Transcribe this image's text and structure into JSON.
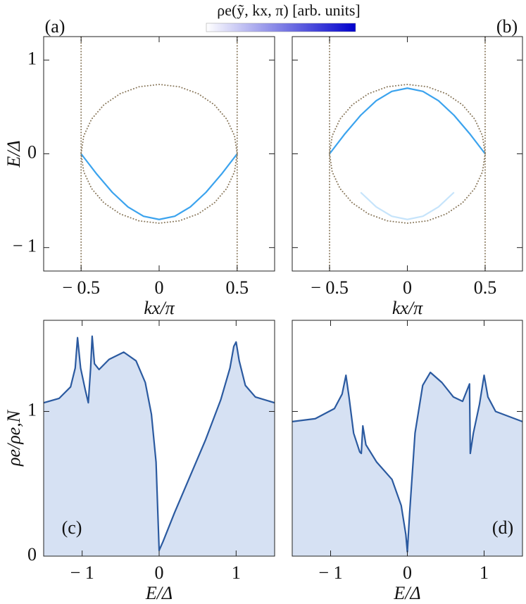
{
  "chart_data": [
    {
      "type": "line",
      "panel_label": "(a)",
      "ylabel": "E/Δ",
      "xlabel": "kx/π",
      "colorbar": {
        "label": "ρe(ỹ, kx, π) [arb. units]",
        "colors": [
          "#ffffff",
          "#0000cc"
        ]
      },
      "xlim": [
        -0.74,
        0.74
      ],
      "ylim": [
        -1.25,
        1.25
      ],
      "xticks": [
        {
          "value": -0.5,
          "label": "− 0.5"
        },
        0,
        0.5
      ],
      "yticks": [
        {
          "value": -1,
          "label": "− 1"
        },
        0,
        1
      ],
      "show_ytick_labels": true,
      "series": [
        {
          "color": "#3ba3ee",
          "style": "solid",
          "x": [
            -0.5,
            -0.4,
            -0.3,
            -0.2,
            -0.1,
            0,
            0.1,
            0.2,
            0.3,
            0.4,
            0.5
          ],
          "values": [
            0,
            -0.216,
            -0.411,
            -0.566,
            -0.666,
            -0.7,
            -0.666,
            -0.566,
            -0.411,
            -0.216,
            0
          ]
        },
        {
          "color": "#8b7a5e",
          "style": "dotted",
          "x": [
            0.5,
            0.483,
            0.433,
            0.354,
            0.25,
            0.129,
            0,
            -0.129,
            -0.25,
            -0.354,
            -0.433,
            -0.483,
            -0.5,
            -0.483,
            -0.433,
            -0.354,
            -0.25,
            -0.129,
            0,
            0.129,
            0.25,
            0.354,
            0.433,
            0.483,
            0.5
          ],
          "values": [
            0,
            0.192,
            0.37,
            0.523,
            0.641,
            0.715,
            0.74,
            0.715,
            0.641,
            0.523,
            0.37,
            0.192,
            0,
            -0.192,
            -0.37,
            -0.523,
            -0.641,
            -0.715,
            -0.74,
            -0.715,
            -0.641,
            -0.523,
            -0.37,
            -0.192,
            0
          ]
        },
        {
          "color": "#8b7a5e",
          "style": "dotted",
          "x": [
            -0.5,
            -0.5
          ],
          "values": [
            -1.25,
            1.25
          ]
        },
        {
          "color": "#8b7a5e",
          "style": "dotted",
          "x": [
            0.5,
            0.5
          ],
          "values": [
            -1.25,
            1.25
          ]
        }
      ]
    },
    {
      "type": "line",
      "panel_label": "(b)",
      "xlabel": "kx/π",
      "xlim": [
        -0.74,
        0.74
      ],
      "ylim": [
        -1.25,
        1.25
      ],
      "xticks": [
        {
          "value": -0.5,
          "label": "− 0.5"
        },
        0,
        0.5
      ],
      "yticks": [
        -1,
        0,
        1
      ],
      "show_ytick_labels": false,
      "series": [
        {
          "color": "#3ba3ee",
          "style": "solid",
          "x": [
            -0.5,
            -0.4,
            -0.3,
            -0.2,
            -0.1,
            0,
            0.1,
            0.2,
            0.3,
            0.4,
            0.5
          ],
          "values": [
            0,
            0.216,
            0.411,
            0.566,
            0.666,
            0.7,
            0.666,
            0.566,
            0.411,
            0.216,
            0
          ]
        },
        {
          "color": "#c6e4fb",
          "style": "solid",
          "x": [
            -0.3,
            -0.2,
            -0.1,
            0,
            0.1,
            0.2,
            0.3
          ],
          "values": [
            -0.411,
            -0.566,
            -0.666,
            -0.7,
            -0.666,
            -0.566,
            -0.411
          ]
        },
        {
          "color": "#8b7a5e",
          "style": "dotted",
          "x": [
            0.5,
            0.483,
            0.433,
            0.354,
            0.25,
            0.129,
            0,
            -0.129,
            -0.25,
            -0.354,
            -0.433,
            -0.483,
            -0.5,
            -0.483,
            -0.433,
            -0.354,
            -0.25,
            -0.129,
            0,
            0.129,
            0.25,
            0.354,
            0.433,
            0.483,
            0.5
          ],
          "values": [
            0,
            0.192,
            0.37,
            0.523,
            0.641,
            0.715,
            0.74,
            0.715,
            0.641,
            0.523,
            0.37,
            0.192,
            0,
            -0.192,
            -0.37,
            -0.523,
            -0.641,
            -0.715,
            -0.74,
            -0.715,
            -0.641,
            -0.523,
            -0.37,
            -0.192,
            0
          ]
        },
        {
          "color": "#8b7a5e",
          "style": "dotted",
          "x": [
            -0.5,
            -0.5
          ],
          "values": [
            -1.25,
            1.25
          ]
        },
        {
          "color": "#8b7a5e",
          "style": "dotted",
          "x": [
            0.5,
            0.5
          ],
          "values": [
            -1.25,
            1.25
          ]
        }
      ]
    },
    {
      "type": "area",
      "panel_label": "(c)",
      "ylabel": "ρe/ρe,N",
      "xlabel": "E/Δ",
      "xlim": [
        -1.5,
        1.5
      ],
      "ylim": [
        0,
        1.63
      ],
      "xticks": [
        {
          "value": -1,
          "label": "− 1"
        },
        0,
        1
      ],
      "yticks": [
        0,
        1
      ],
      "show_ytick_labels": true,
      "fill": "#d6e1f3",
      "series": [
        {
          "color": "#2b5aa0",
          "style": "solid",
          "x": [
            -1.5,
            -1.3,
            -1.15,
            -1.09,
            -1.06,
            -1.02,
            -0.96,
            -0.92,
            -0.89,
            -0.87,
            -0.84,
            -0.78,
            -0.65,
            -0.46,
            -0.3,
            -0.18,
            -0.1,
            -0.04,
            0,
            0.05,
            0.2,
            0.4,
            0.6,
            0.8,
            0.92,
            0.97,
            1.0,
            1.04,
            1.12,
            1.25,
            1.5
          ],
          "values": [
            1.06,
            1.09,
            1.17,
            1.3,
            1.51,
            1.3,
            1.15,
            1.06,
            1.3,
            1.52,
            1.33,
            1.29,
            1.36,
            1.41,
            1.35,
            1.2,
            0.98,
            0.65,
            0.04,
            0.1,
            0.3,
            0.55,
            0.8,
            1.08,
            1.3,
            1.45,
            1.48,
            1.35,
            1.18,
            1.1,
            1.06
          ]
        }
      ]
    },
    {
      "type": "area",
      "panel_label": "(d)",
      "xlabel": "E/Δ",
      "xlim": [
        -1.5,
        1.5
      ],
      "ylim": [
        0,
        1.63
      ],
      "xticks": [
        {
          "value": -1,
          "label": "− 1"
        },
        0,
        1
      ],
      "yticks": [
        0,
        1
      ],
      "show_ytick_labels": false,
      "fill": "#d6e1f3",
      "series": [
        {
          "color": "#2b5aa0",
          "style": "solid",
          "x": [
            -1.5,
            -1.2,
            -0.95,
            -0.85,
            -0.8,
            -0.76,
            -0.7,
            -0.62,
            -0.6,
            -0.58,
            -0.54,
            -0.4,
            -0.2,
            -0.08,
            -0.02,
            0,
            0.03,
            0.1,
            0.2,
            0.3,
            0.45,
            0.6,
            0.72,
            0.78,
            0.81,
            0.82,
            0.86,
            0.94,
            1.0,
            1.05,
            1.15,
            1.5
          ],
          "values": [
            0.93,
            0.95,
            1.02,
            1.12,
            1.25,
            1.1,
            0.85,
            0.72,
            0.71,
            0.9,
            0.77,
            0.65,
            0.53,
            0.35,
            0.15,
            0.03,
            0.3,
            0.85,
            1.18,
            1.27,
            1.2,
            1.1,
            1.07,
            1.15,
            1.19,
            0.71,
            0.85,
            1.05,
            1.25,
            1.1,
            1.0,
            0.93
          ]
        }
      ]
    }
  ]
}
